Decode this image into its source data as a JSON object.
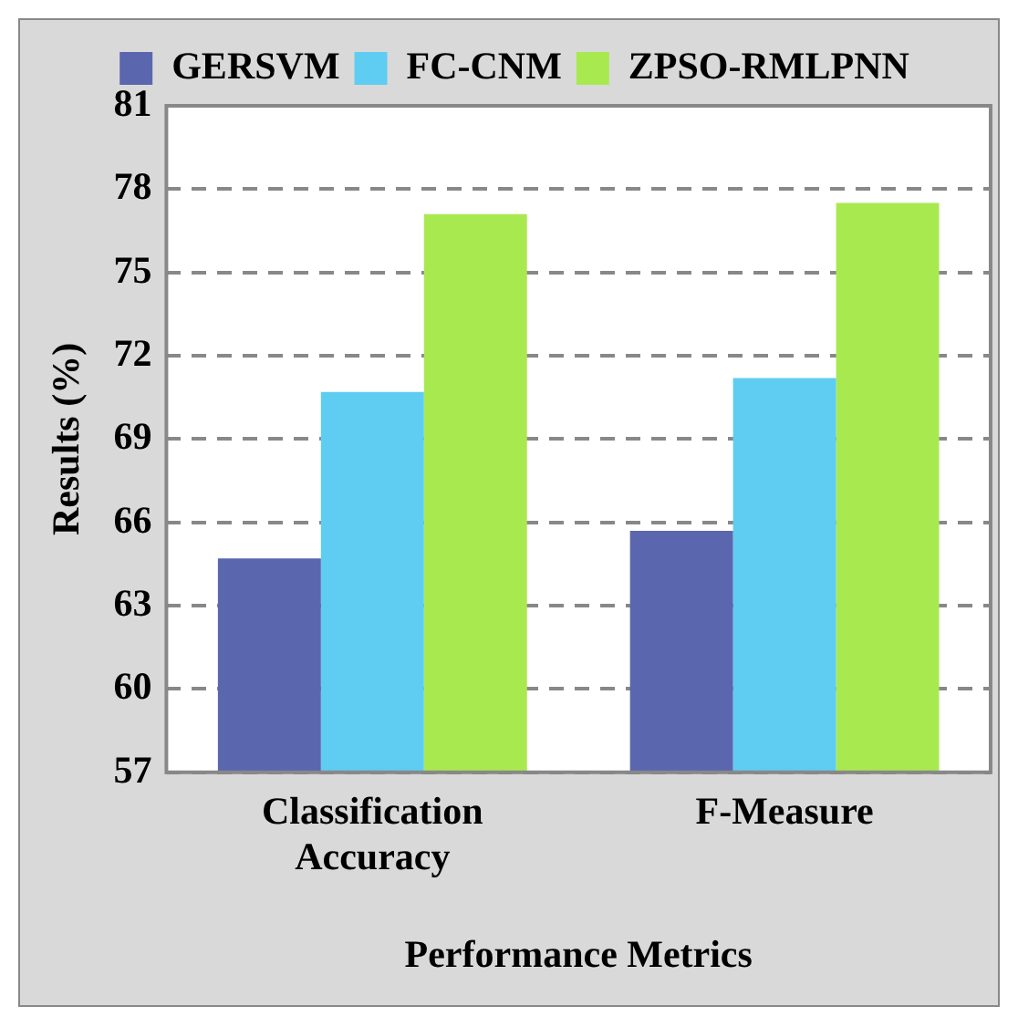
{
  "chart_data": {
    "type": "bar",
    "xlabel": "Performance Metrics",
    "ylabel": "Results (%)",
    "categories": [
      "Classification Accuracy",
      "F-Measure"
    ],
    "series": [
      {
        "name": "GERSVM",
        "color": "#5a67ae",
        "values": [
          64.7,
          65.7
        ]
      },
      {
        "name": "FC-CNM",
        "color": "#5fcdf1",
        "values": [
          70.7,
          71.2
        ]
      },
      {
        "name": "ZPSO-RMLPNN",
        "color": "#a9e950",
        "values": [
          77.1,
          77.5
        ]
      }
    ],
    "ylim": [
      57,
      81
    ],
    "yticks": [
      57,
      60,
      63,
      66,
      69,
      72,
      75,
      78,
      81
    ],
    "grid": "y",
    "legend": "top"
  }
}
